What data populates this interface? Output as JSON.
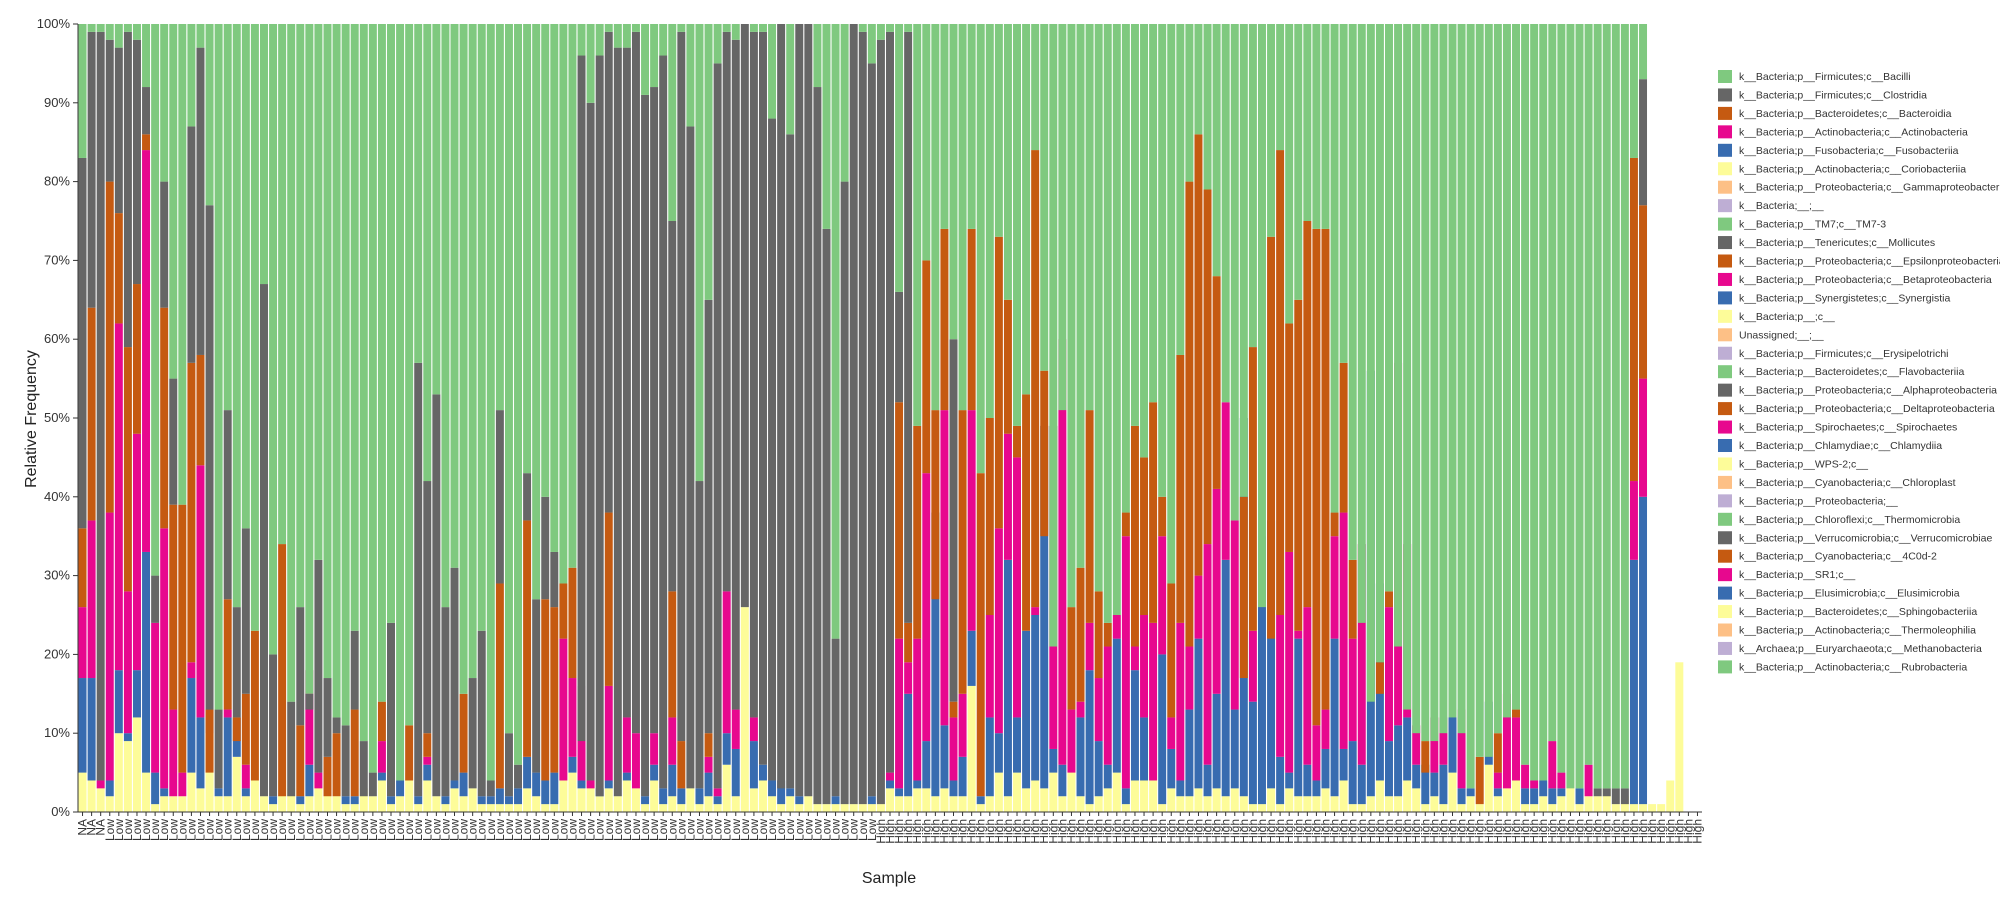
{
  "chart_data": {
    "type": "bar",
    "stacked": true,
    "title": "",
    "xlabel": "Sample",
    "ylabel": "Relative Frequency",
    "ylim": [
      0,
      100
    ],
    "y_ticks": [
      "0%",
      "10%",
      "20%",
      "30%",
      "40%",
      "50%",
      "60%",
      "70%",
      "80%",
      "90%",
      "100%"
    ],
    "grid": false,
    "legend_position": "right",
    "categories": [
      "NA",
      "NA",
      "NA",
      "Low",
      "Low",
      "Low",
      "Low",
      "Low",
      "Low",
      "Low",
      "Low",
      "Low",
      "Low",
      "Low",
      "Low",
      "Low",
      "Low",
      "Low",
      "Low",
      "Low",
      "Low",
      "Low",
      "Low",
      "Low",
      "Low",
      "Low",
      "Low",
      "Low",
      "Low",
      "Low",
      "Low",
      "Low",
      "Low",
      "Low",
      "Low",
      "Low",
      "Low",
      "Low",
      "Low",
      "Low",
      "Low",
      "Low",
      "Low",
      "Low",
      "Low",
      "Low",
      "Low",
      "Low",
      "Low",
      "Low",
      "Low",
      "Low",
      "Low",
      "Low",
      "Low",
      "Low",
      "Low",
      "Low",
      "Low",
      "Low",
      "Low",
      "Low",
      "Low",
      "Low",
      "Low",
      "Low",
      "Low",
      "Low",
      "Low",
      "Low",
      "Low",
      "Low",
      "Low",
      "Low",
      "Low",
      "Low",
      "Low",
      "Low",
      "Low",
      "Low",
      "Low",
      "Low",
      "Low",
      "Low",
      "Low",
      "Low",
      "Low",
      "Low",
      "High",
      "High",
      "High",
      "High",
      "High",
      "High",
      "High",
      "High",
      "High",
      "High",
      "High",
      "High",
      "High",
      "High",
      "High",
      "High",
      "High",
      "High",
      "High",
      "High",
      "High",
      "High",
      "High",
      "High",
      "High",
      "High",
      "High",
      "High",
      "High",
      "High",
      "High",
      "High",
      "High",
      "High",
      "High",
      "High",
      "High",
      "High",
      "High",
      "High",
      "High",
      "High",
      "High",
      "High",
      "High",
      "High",
      "High",
      "High",
      "High",
      "High",
      "High",
      "High",
      "High",
      "High",
      "High",
      "High",
      "High",
      "High",
      "High",
      "High",
      "High",
      "High",
      "High",
      "High",
      "High",
      "High",
      "High",
      "High",
      "High",
      "High",
      "High",
      "High",
      "High",
      "High",
      "High",
      "High",
      "High",
      "High",
      "High",
      "High",
      "High",
      "High",
      "High",
      "High",
      "High",
      "High",
      "High",
      "High",
      "High",
      "High",
      "High"
    ],
    "series_names": [
      "k__Bacteria;p__Firmicutes;c__Bacilli",
      "k__Bacteria;p__Firmicutes;c__Clostridia",
      "k__Bacteria;p__Bacteroidetes;c__Bacteroidia",
      "k__Bacteria;p__Actinobacteria;c__Actinobacteria",
      "k__Bacteria;p__Fusobacteria;c__Fusobacteriia",
      "k__Bacteria;p__Actinobacteria;c__Coriobacteriia",
      "k__Bacteria;p__Proteobacteria;c__Gammaproteobacteria",
      "k__Bacteria;__;__",
      "k__Bacteria;p__TM7;c__TM7-3",
      "k__Bacteria;p__Tenericutes;c__Mollicutes",
      "k__Bacteria;p__Proteobacteria;c__Epsilonproteobacteria",
      "k__Bacteria;p__Proteobacteria;c__Betaproteobacteria",
      "k__Bacteria;p__Synergistetes;c__Synergistia",
      "k__Bacteria;p__;c__",
      "Unassigned;__;__",
      "k__Bacteria;p__Firmicutes;c__Erysipelotrichi",
      "k__Bacteria;p__Bacteroidetes;c__Flavobacteriia",
      "k__Bacteria;p__Proteobacteria;c__Alphaproteobacteria",
      "k__Bacteria;p__Proteobacteria;c__Deltaproteobacteria",
      "k__Bacteria;p__Spirochaetes;c__Spirochaetes",
      "k__Bacteria;p__Chlamydiae;c__Chlamydiia",
      "k__Bacteria;p__WPS-2;c__",
      "k__Bacteria;p__Cyanobacteria;c__Chloroplast",
      "k__Bacteria;p__Proteobacteria;__",
      "k__Bacteria;p__Chloroflexi;c__Thermomicrobia",
      "k__Bacteria;p__Verrucomicrobia;c__Verrucomicrobiae",
      "k__Bacteria;p__Cyanobacteria;c__4C0d-2",
      "k__Bacteria;p__SR1;c__",
      "k__Bacteria;p__Elusimicrobia;c__Elusimicrobia",
      "k__Bacteria;p__Bacteroidetes;c__Sphingobacteriia",
      "k__Bacteria;p__Actinobacteria;c__Thermoleophilia",
      "k__Archaea;p__Euryarchaeota;c__Methanobacteria",
      "k__Bacteria;p__Actinobacteria;c__Rubrobacteria"
    ],
    "series_colors": [
      "#7fc97f",
      "#666666",
      "#c55a11",
      "#e7088e",
      "#386cb0",
      "#fdfc99",
      "#fdc086",
      "#beaed4",
      "#7fc97f",
      "#666666",
      "#c55a11",
      "#e7088e",
      "#386cb0",
      "#fdfc99",
      "#fdc086",
      "#beaed4",
      "#7fc97f",
      "#666666",
      "#c55a11",
      "#e7088e",
      "#386cb0",
      "#fdfc99",
      "#fdc086",
      "#beaed4",
      "#7fc97f",
      "#666666",
      "#c55a11",
      "#e7088e",
      "#386cb0",
      "#fdfc99",
      "#fdc086",
      "#beaed4",
      "#7fc97f"
    ],
    "stack_order_bottom_up": [
      "Coriobacteriia",
      "Fusobacteriia",
      "Actinobacteria",
      "Bacteroidia",
      "Clostridia",
      "Bacilli"
    ],
    "cumulative_tops_bottom_up": {
      "Coriobacteriia": [
        5,
        4,
        3,
        2,
        10,
        9,
        12,
        5,
        1,
        2,
        2,
        2,
        5,
        3,
        10,
        2,
        2,
        7,
        2,
        4,
        2,
        1,
        4,
        3,
        1,
        2,
        4,
        5,
        2,
        1,
        1,
        3,
        2,
        4,
        1,
        2,
        5,
        1,
        4,
        2,
        1,
        3,
        2,
        3,
        1,
        1,
        1,
        1,
        1,
        3,
        2,
        1,
        1,
        6,
        5,
        3,
        4,
        2,
        3,
        2,
        4,
        3,
        1,
        4,
        1,
        2,
        1,
        3,
        1,
        2,
        1,
        6,
        2,
        26,
        3,
        4,
        2,
        1,
        2,
        1,
        2,
        1,
        1,
        1,
        1,
        1,
        1,
        1,
        1,
        3,
        2,
        2,
        3,
        3,
        2,
        3,
        2,
        2,
        16,
        1,
        2,
        5,
        2,
        5,
        3,
        4,
        3,
        5,
        2,
        6,
        2,
        1,
        2,
        3,
        5,
        1,
        4,
        4,
        12,
        1,
        3,
        2,
        2,
        3,
        2,
        3,
        2,
        3,
        2,
        1,
        1,
        3,
        1,
        3,
        2,
        2,
        2,
        3,
        2,
        4,
        1,
        1,
        2,
        4,
        2,
        2,
        4,
        3,
        1,
        2,
        1,
        5,
        1,
        2,
        1,
        6,
        2,
        3,
        4,
        1,
        1,
        2,
        1,
        2,
        4,
        1,
        2,
        2,
        3,
        1,
        2,
        1,
        1,
        1,
        1,
        4,
        19
      ],
      "Fusobacteriia": [
        17,
        17,
        3,
        4,
        18,
        10,
        18,
        33,
        5,
        3,
        2,
        2,
        17,
        12,
        13,
        3,
        12,
        12,
        3,
        4,
        2,
        2,
        2,
        3,
        2,
        6,
        3,
        2,
        2,
        2,
        2,
        2,
        2,
        5,
        2,
        4,
        4,
        2,
        6,
        2,
        2,
        4,
        5,
        3,
        2,
        2,
        3,
        2,
        3,
        7,
        5,
        4,
        5,
        4,
        7,
        4,
        3,
        3,
        4,
        2,
        5,
        3,
        2,
        6,
        3,
        6,
        3,
        3,
        3,
        5,
        2,
        10,
        8,
        26,
        9,
        6,
        4,
        4,
        3,
        2,
        2,
        1,
        1,
        2,
        1,
        1,
        1,
        2,
        1,
        4,
        3,
        15,
        4,
        9,
        38,
        11,
        4,
        7,
        23,
        2,
        12,
        10,
        32,
        12,
        23,
        25,
        49,
        8,
        6,
        5,
        12,
        18,
        9,
        6,
        22,
        3,
        18,
        12,
        4,
        20,
        8,
        4,
        13,
        22,
        6,
        15,
        32,
        13,
        50,
        14,
        35,
        37,
        7,
        5,
        22,
        6,
        4,
        8,
        22,
        8,
        9,
        6,
        56,
        29,
        9,
        11,
        12,
        6,
        6,
        5,
        6,
        19,
        3,
        3,
        1,
        14,
        3,
        3,
        4,
        3,
        3,
        4,
        3,
        3,
        3,
        3,
        2,
        2,
        2,
        1,
        1,
        32,
        40
      ],
      "Actinobacteria": [
        26,
        37,
        4,
        38,
        62,
        28,
        48,
        84,
        24,
        36,
        13,
        5,
        19,
        44,
        5,
        3,
        13,
        9,
        6,
        4,
        2,
        2,
        2,
        2,
        2,
        18,
        5,
        2,
        2,
        2,
        2,
        2,
        2,
        9,
        2,
        4,
        4,
        2,
        7,
        2,
        2,
        4,
        5,
        3,
        2,
        2,
        3,
        2,
        3,
        7,
        5,
        4,
        5,
        22,
        17,
        16,
        4,
        2,
        16,
        2,
        12,
        10,
        2,
        10,
        3,
        12,
        3,
        3,
        3,
        7,
        3,
        28,
        13,
        26,
        12,
        6,
        4,
        3,
        3,
        2,
        2,
        1,
        1,
        2,
        1,
        1,
        1,
        2,
        1,
        5,
        22,
        19,
        22,
        43,
        27,
        51,
        12,
        15,
        51,
        2,
        25,
        36,
        48,
        45,
        23,
        26,
        35,
        49,
        60,
        13,
        14,
        24,
        17,
        21,
        25,
        35,
        21,
        25,
        24,
        35,
        12,
        24,
        21,
        30,
        34,
        41,
        52,
        37,
        17,
        23,
        35,
        22,
        25,
        33,
        23,
        26,
        11,
        13,
        35,
        38,
        22,
        34,
        56,
        15,
        26,
        57,
        34,
        11,
        5,
        12,
        12,
        19,
        13,
        3,
        1,
        11,
        5,
        15,
        12,
        6,
        4,
        4,
        9,
        5,
        3,
        3,
        6,
        2,
        2,
        1,
        1,
        42,
        55
      ],
      "Bacteroidia": [
        36,
        64,
        4,
        80,
        76,
        59,
        67,
        86,
        24,
        64,
        39,
        39,
        57,
        58,
        13,
        3,
        27,
        12,
        15,
        23,
        2,
        2,
        34,
        2,
        11,
        13,
        5,
        7,
        10,
        2,
        13,
        2,
        2,
        14,
        2,
        4,
        11,
        2,
        10,
        2,
        2,
        4,
        15,
        3,
        2,
        2,
        29,
        2,
        3,
        37,
        5,
        27,
        26,
        29,
        31,
        9,
        4,
        2,
        38,
        2,
        12,
        10,
        2,
        10,
        3,
        28,
        9,
        3,
        3,
        10,
        3,
        28,
        13,
        26,
        12,
        6,
        4,
        3,
        3,
        2,
        2,
        1,
        1,
        2,
        1,
        1,
        1,
        2,
        1,
        5,
        52,
        24,
        49,
        70,
        51,
        74,
        14,
        51,
        74,
        43,
        50,
        73,
        65,
        49,
        53,
        84,
        56,
        21,
        51,
        26,
        31,
        51,
        28,
        24,
        25,
        38,
        49,
        45,
        52,
        40,
        29,
        58,
        80,
        86,
        79,
        68,
        52,
        37,
        40,
        59,
        26,
        73,
        84,
        62,
        65,
        75,
        74,
        74,
        38,
        57,
        32,
        24,
        14,
        19,
        28,
        21,
        13,
        10,
        9,
        9,
        10,
        12,
        10,
        3,
        7,
        7,
        10,
        12,
        13,
        6,
        4,
        4,
        9,
        5,
        3,
        3,
        6,
        2,
        2,
        1,
        1,
        83,
        77
      ]
    }
  }
}
